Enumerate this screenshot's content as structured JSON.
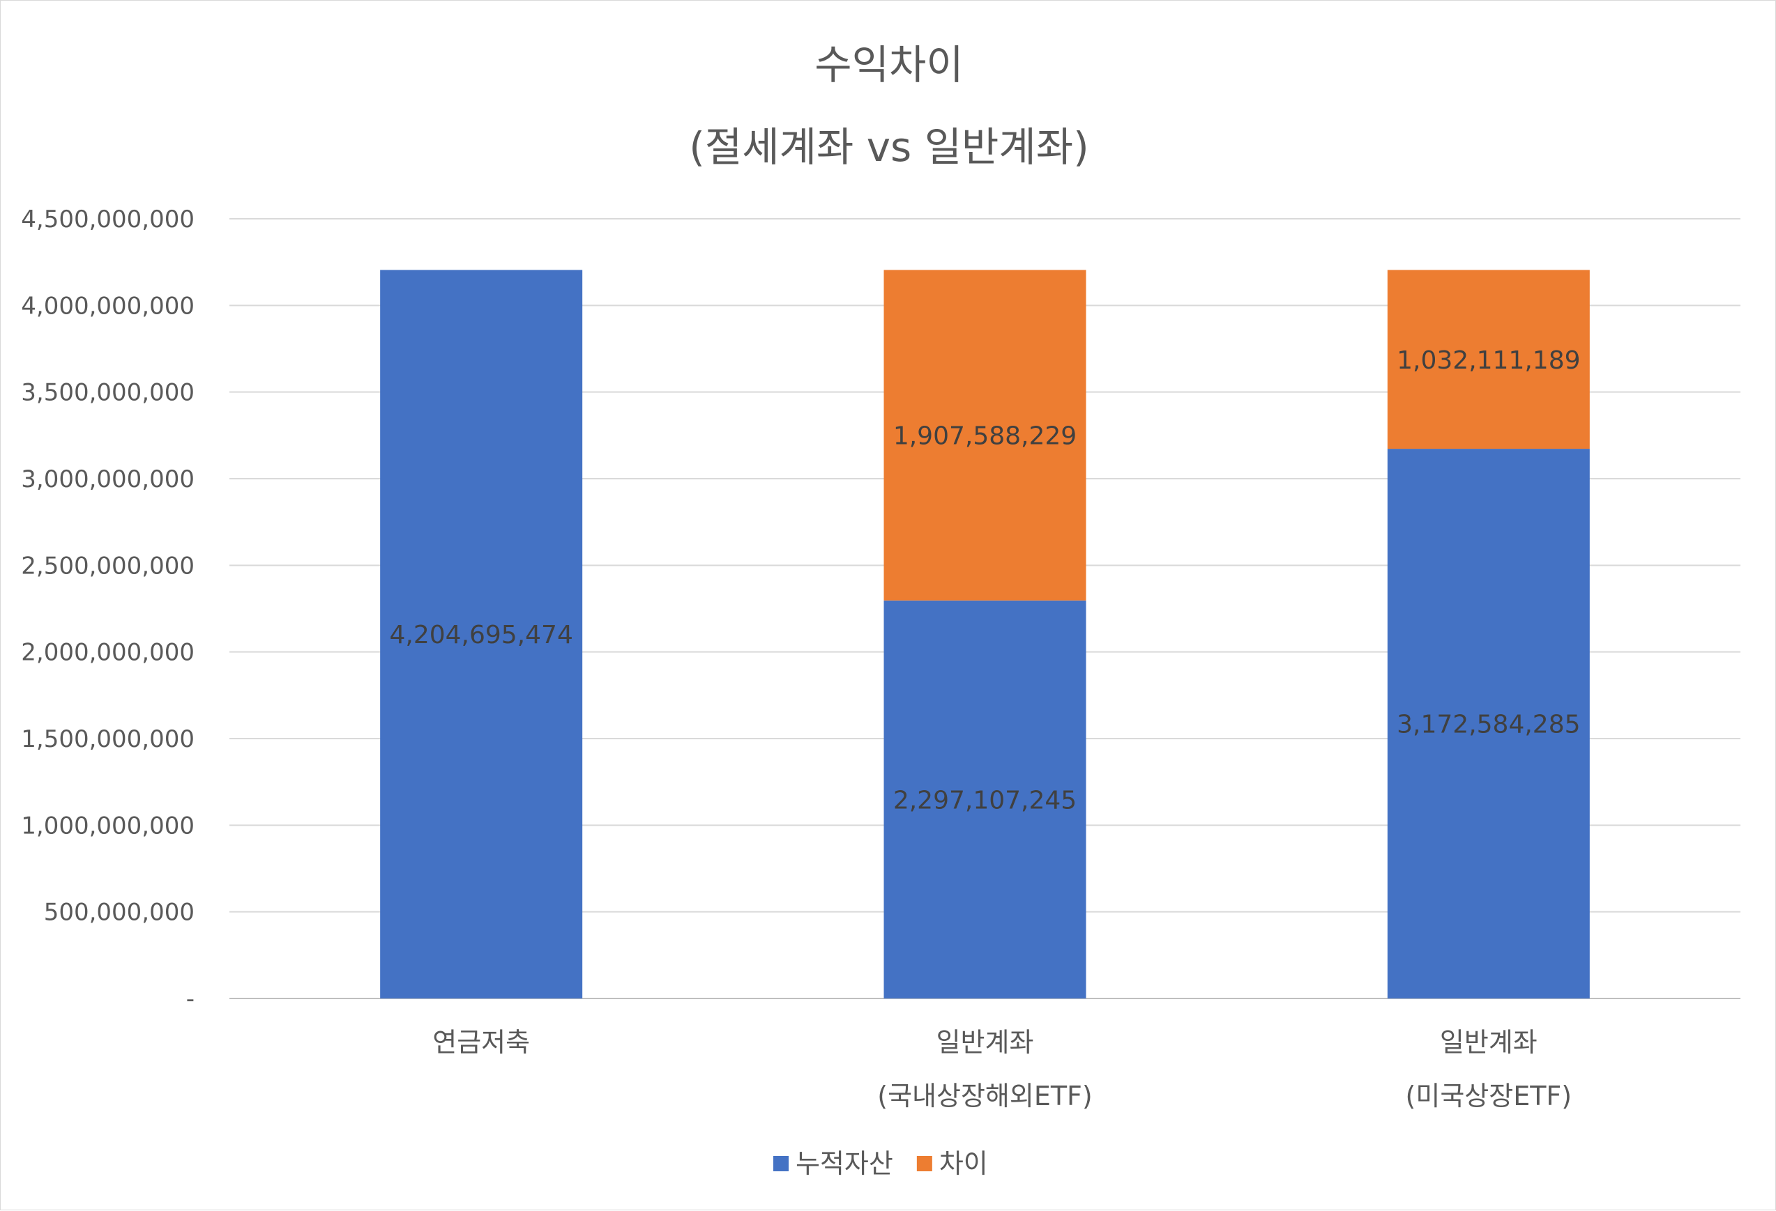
{
  "chart_data": {
    "type": "bar",
    "stacked": true,
    "title": [
      "수익차이",
      "(절세계좌 vs 일반계좌)"
    ],
    "xlabel": "",
    "ylabel": "",
    "categories": [
      [
        "연금저축"
      ],
      [
        "일반계좌",
        "(국내상장해외ETF)"
      ],
      [
        "일반계좌",
        "(미국상장ETF)"
      ]
    ],
    "series": [
      {
        "name": "누적자산",
        "color": "#4472C4",
        "values": [
          4204695474,
          2297107245,
          3172584285
        ],
        "labels": [
          "4,204,695,474",
          "2,297,107,245",
          "3,172,584,285"
        ]
      },
      {
        "name": "차이",
        "color": "#ED7D31",
        "values": [
          0,
          1907588229,
          1032111189
        ],
        "labels": [
          "",
          "1,907,588,229",
          "1,032,111,189"
        ]
      }
    ],
    "ylim": [
      0,
      4500000000
    ],
    "yticks": [
      0,
      500000000,
      1000000000,
      1500000000,
      2000000000,
      2500000000,
      3000000000,
      3500000000,
      4000000000,
      4500000000
    ],
    "ytick_labels": [
      "-",
      "500,000,000",
      "1,000,000,000",
      "1,500,000,000",
      "2,000,000,000",
      "2,500,000,000",
      "3,000,000,000",
      "3,500,000,000",
      "4,000,000,000",
      "4,500,000,000"
    ],
    "grid": true,
    "legend": "bottom"
  }
}
